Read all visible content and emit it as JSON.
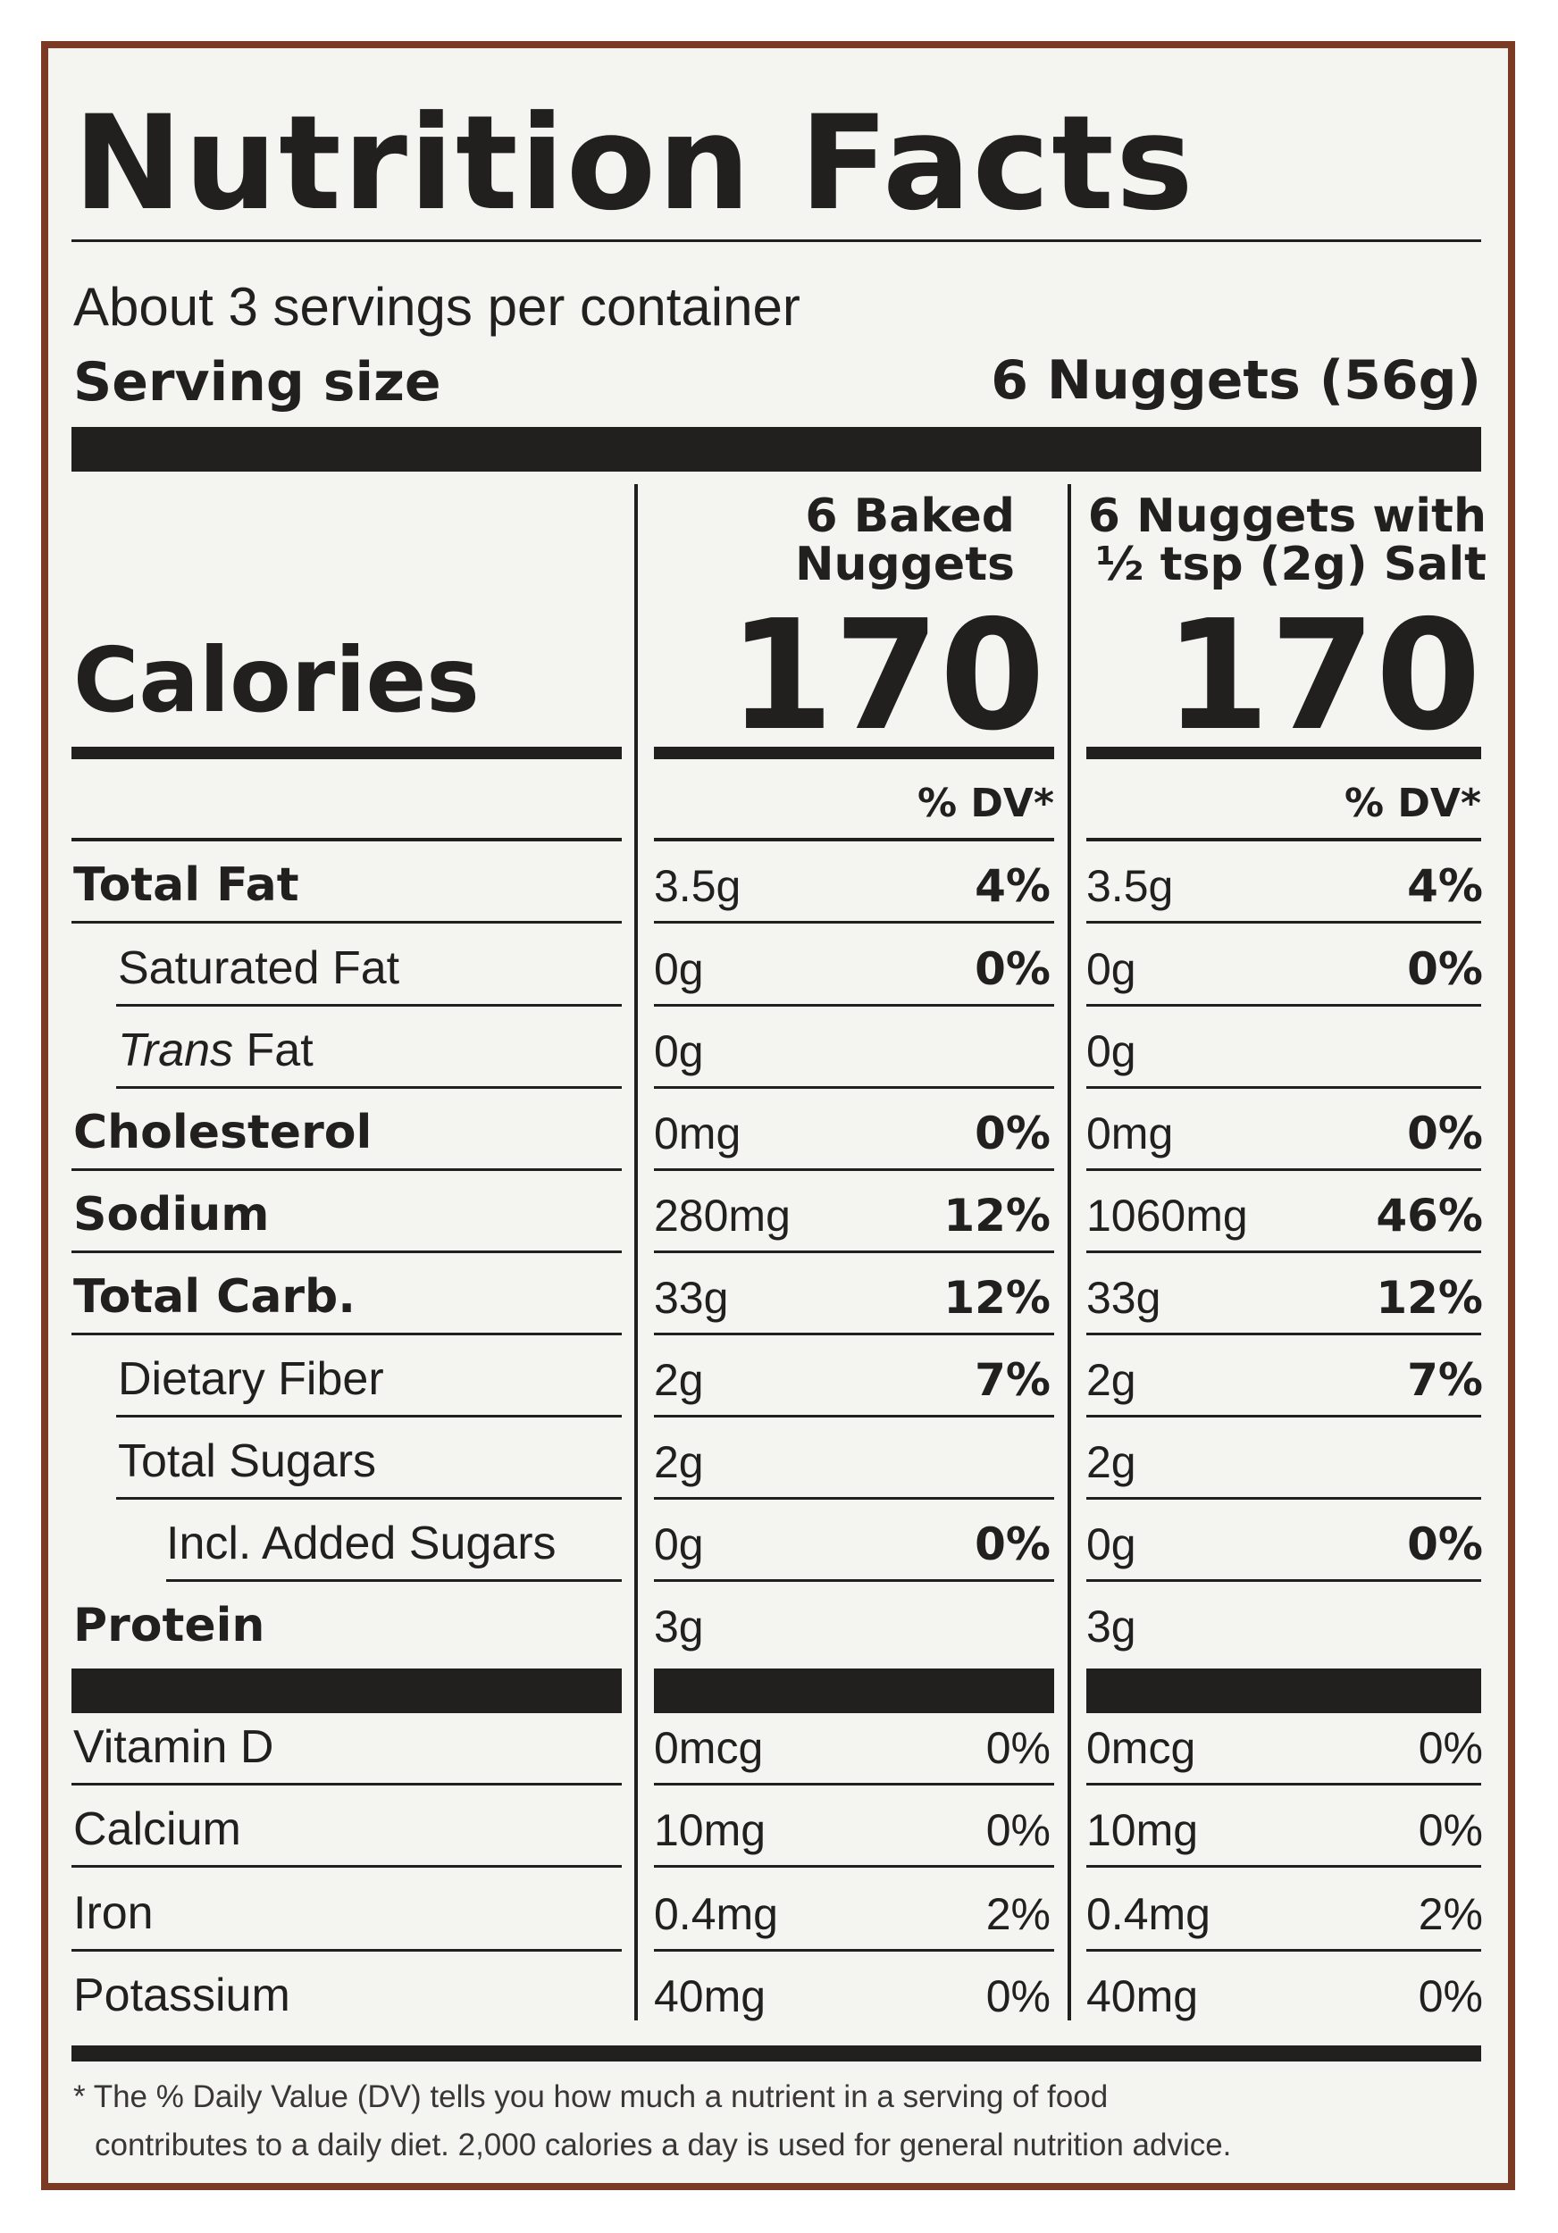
{
  "label": {
    "title": "Nutrition Facts",
    "servings_per_container": "About 3 servings per container",
    "serving_size_label": "Serving size",
    "serving_size_value": "6 Nuggets (56g)",
    "calories_label": "Calories",
    "columns": [
      {
        "heading_line1": "6 Baked",
        "heading_line2": "Nuggets",
        "calories": "170",
        "dv_header": "% DV*"
      },
      {
        "heading_line1": "6 Nuggets with",
        "heading_line2": "½ tsp (2g) Salt",
        "calories": "170",
        "dv_header": "% DV*"
      }
    ],
    "nutrients": [
      {
        "name": "Total Fat",
        "c1_amount": "3.5g",
        "c1_dv": "4%",
        "c2_amount": "3.5g",
        "c2_dv": "4%"
      },
      {
        "name": "Saturated Fat",
        "c1_amount": "0g",
        "c1_dv": "0%",
        "c2_amount": "0g",
        "c2_dv": "0%"
      },
      {
        "name_italic": "Trans",
        "name_rest": " Fat",
        "c1_amount": "0g",
        "c1_dv": "",
        "c2_amount": "0g",
        "c2_dv": ""
      },
      {
        "name": "Cholesterol",
        "c1_amount": "0mg",
        "c1_dv": "0%",
        "c2_amount": "0mg",
        "c2_dv": "0%"
      },
      {
        "name": "Sodium",
        "c1_amount": "280mg",
        "c1_dv": "12%",
        "c2_amount": "1060mg",
        "c2_dv": "46%"
      },
      {
        "name": "Total Carb.",
        "c1_amount": "33g",
        "c1_dv": "12%",
        "c2_amount": "33g",
        "c2_dv": "12%"
      },
      {
        "name": "Dietary Fiber",
        "c1_amount": "2g",
        "c1_dv": "7%",
        "c2_amount": "2g",
        "c2_dv": "7%"
      },
      {
        "name": "Total Sugars",
        "c1_amount": "2g",
        "c1_dv": "",
        "c2_amount": "2g",
        "c2_dv": ""
      },
      {
        "name": "Incl. Added Sugars",
        "c1_amount": "0g",
        "c1_dv": "0%",
        "c2_amount": "0g",
        "c2_dv": "0%"
      },
      {
        "name": "Protein",
        "c1_amount": "3g",
        "c1_dv": "",
        "c2_amount": "3g",
        "c2_dv": ""
      }
    ],
    "vitamins": [
      {
        "name": "Vitamin D",
        "c1_amount": "0mcg",
        "c1_dv": "0%",
        "c2_amount": "0mcg",
        "c2_dv": "0%"
      },
      {
        "name": "Calcium",
        "c1_amount": "10mg",
        "c1_dv": "0%",
        "c2_amount": "10mg",
        "c2_dv": "0%"
      },
      {
        "name": "Iron",
        "c1_amount": "0.4mg",
        "c1_dv": "2%",
        "c2_amount": "0.4mg",
        "c2_dv": "2%"
      },
      {
        "name": "Potassium",
        "c1_amount": "40mg",
        "c1_dv": "0%",
        "c2_amount": "40mg",
        "c2_dv": "0%"
      }
    ],
    "footnote_line1": "* The % Daily Value (DV) tells you how much a nutrient in a serving of food",
    "footnote_line2": "contributes to a daily diet. 2,000 calories a day is used for general nutrition advice."
  },
  "colors": {
    "ink": "#221f1f",
    "border": "#7a3a24",
    "background": "#f4f4f1"
  }
}
